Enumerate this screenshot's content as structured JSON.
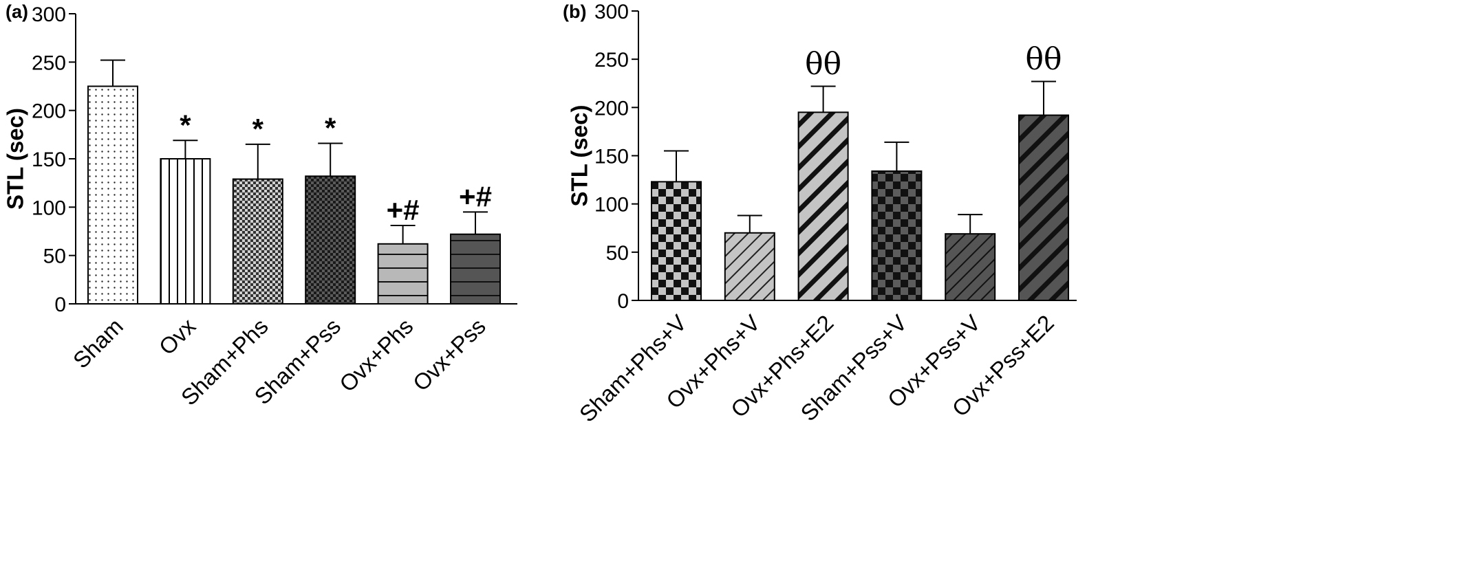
{
  "chart_data": [
    {
      "type": "bar",
      "panel": "(a)",
      "ylabel": "STL (sec)",
      "ylim": [
        0,
        300
      ],
      "yticks": [
        0,
        50,
        100,
        150,
        200,
        250,
        300
      ],
      "error_bars": "upper",
      "categories": [
        "Sham",
        "Ovx",
        "Sham+Phs",
        "Sham+Pss",
        "Ovx+Phs",
        "Ovx+Pss"
      ],
      "values": [
        225,
        150,
        129,
        132,
        62,
        72
      ],
      "errors": [
        27,
        19,
        36,
        34,
        19,
        23
      ],
      "annotations": [
        "",
        "*",
        "*",
        "*",
        "+#",
        "+#"
      ],
      "patterns": [
        "dots",
        "vertical-lines",
        "fine-checker",
        "dark-checker",
        "light-horizontal",
        "dark-horizontal"
      ]
    },
    {
      "type": "bar",
      "panel": "(b)",
      "ylabel": "STL (sec)",
      "ylim": [
        0,
        300
      ],
      "yticks": [
        0,
        50,
        100,
        150,
        200,
        250,
        300
      ],
      "error_bars": "upper",
      "categories": [
        "Sham+Phs+V",
        "Ovx+Phs+V",
        "Ovx+Phs+E2",
        "Sham+Pss+V",
        "Ovx+Pss+V",
        "Ovx+Pss+E2"
      ],
      "values": [
        123,
        70,
        195,
        134,
        69,
        192
      ],
      "errors": [
        32,
        18,
        27,
        30,
        20,
        35
      ],
      "annotations": [
        "",
        "",
        "θθ",
        "",
        "",
        "θθ"
      ],
      "patterns": [
        "checker-light",
        "light-diag-thin",
        "light-diag-thick",
        "checker-dark",
        "dark-diag-thin",
        "dark-diag-thick"
      ]
    }
  ]
}
